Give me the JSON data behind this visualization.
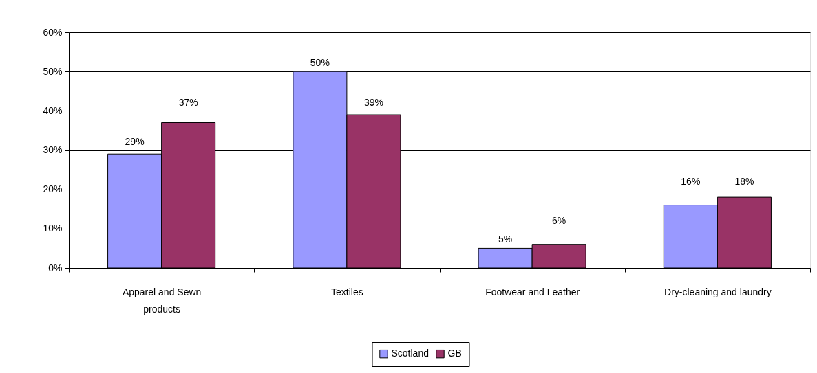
{
  "chart_data": {
    "type": "bar",
    "categories": [
      "Apparel and Sewn products",
      "Textiles",
      "Footwear and Leather",
      "Dry-cleaning and laundry"
    ],
    "series": [
      {
        "name": "Scotland",
        "color": "#9999ff",
        "values": [
          29,
          50,
          5,
          16
        ],
        "value_labels": [
          "29%",
          "50%",
          "5%",
          "16%"
        ]
      },
      {
        "name": "GB",
        "color": "#993366",
        "values": [
          37,
          39,
          6,
          18
        ],
        "value_labels": [
          "37%",
          "39%",
          "6%",
          "18%"
        ]
      }
    ],
    "ylim": [
      0,
      60
    ],
    "yticks": [
      {
        "value": 0,
        "label": "0%"
      },
      {
        "value": 10,
        "label": "10%"
      },
      {
        "value": 20,
        "label": "20%"
      },
      {
        "value": 30,
        "label": "30%"
      },
      {
        "value": 40,
        "label": "40%"
      },
      {
        "value": 50,
        "label": "50%"
      },
      {
        "value": 60,
        "label": "60%"
      }
    ],
    "grid": "y",
    "legend": "bottom"
  }
}
